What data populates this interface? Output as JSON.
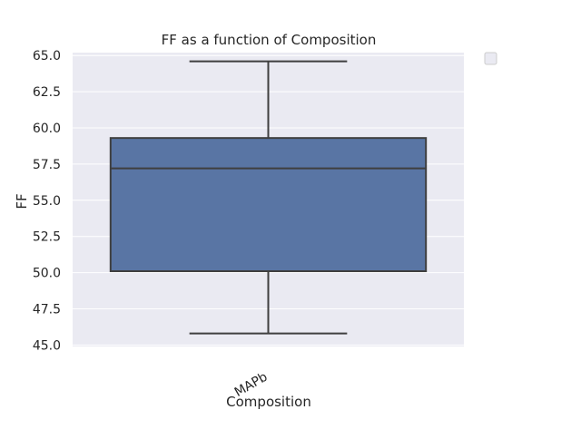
{
  "chart_data": {
    "type": "box",
    "title": "FF as a function of Composition",
    "xlabel": "Composition",
    "ylabel": "FF",
    "categories": [
      "MAPb"
    ],
    "boxes": [
      {
        "category": "MAPb",
        "whisker_low": 45.8,
        "q1": 50.1,
        "median": 57.2,
        "q3": 59.3,
        "whisker_high": 64.6
      }
    ],
    "ylim": [
      44.9,
      65.2
    ],
    "yticks": [
      "45.0",
      "47.5",
      "50.0",
      "52.5",
      "55.0",
      "57.5",
      "60.0",
      "62.5",
      "65.0"
    ],
    "grid": true,
    "legend": "empty, outside top-right",
    "colors": {
      "box_fill": "#5975a4",
      "box_edge": "#3f3f3f",
      "plot_background": "#eaeaf2",
      "grid": "#ffffff"
    }
  }
}
